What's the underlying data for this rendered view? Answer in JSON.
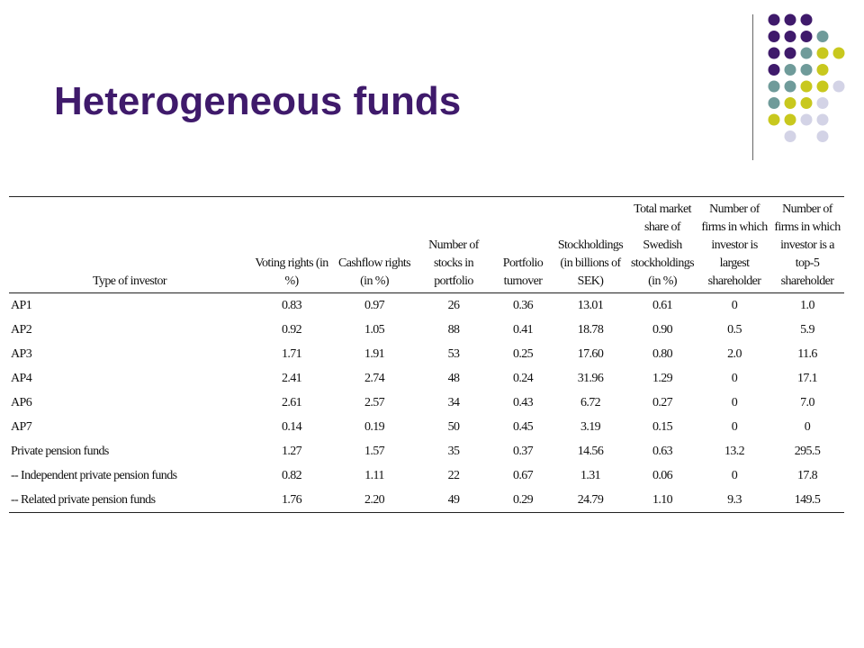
{
  "slide": {
    "title": "Heterogeneous funds"
  },
  "decoration": {
    "dot_colors": {
      "purple": "#3f1a6b",
      "teal": "#6f9b9a",
      "olive": "#c8c81e",
      "lavender": "#d3d3e6"
    }
  },
  "table": {
    "columns": [
      "Type of investor",
      "Voting rights (in %)",
      "Cashflow rights (in %)",
      "Number of stocks in portfolio",
      "Portfolio turnover",
      "Stockholdings (in billions of SEK)",
      "Total market share of Swedish stockholdings (in %)",
      "Number of firms in which investor is largest shareholder",
      "Number of firms in which investor is a top-5 shareholder"
    ],
    "rows": [
      [
        "AP1",
        "0.83",
        "0.97",
        "26",
        "0.36",
        "13.01",
        "0.61",
        "0",
        "1.0"
      ],
      [
        "AP2",
        "0.92",
        "1.05",
        "88",
        "0.41",
        "18.78",
        "0.90",
        "0.5",
        "5.9"
      ],
      [
        "AP3",
        "1.71",
        "1.91",
        "53",
        "0.25",
        "17.60",
        "0.80",
        "2.0",
        "11.6"
      ],
      [
        "AP4",
        "2.41",
        "2.74",
        "48",
        "0.24",
        "31.96",
        "1.29",
        "0",
        "17.1"
      ],
      [
        "AP6",
        "2.61",
        "2.57",
        "34",
        "0.43",
        "6.72",
        "0.27",
        "0",
        "7.0"
      ],
      [
        "AP7",
        "0.14",
        "0.19",
        "50",
        "0.45",
        "3.19",
        "0.15",
        "0",
        "0"
      ],
      [
        "Private pension funds",
        "1.27",
        "1.57",
        "35",
        "0.37",
        "14.56",
        "0.63",
        "13.2",
        "295.5"
      ],
      [
        "-- Independent private pension funds",
        "0.82",
        "1.11",
        "22",
        "0.67",
        "1.31",
        "0.06",
        "0",
        "17.8"
      ],
      [
        "-- Related private pension funds",
        "1.76",
        "2.20",
        "49",
        "0.29",
        "24.79",
        "1.10",
        "9.3",
        "149.5"
      ]
    ]
  }
}
